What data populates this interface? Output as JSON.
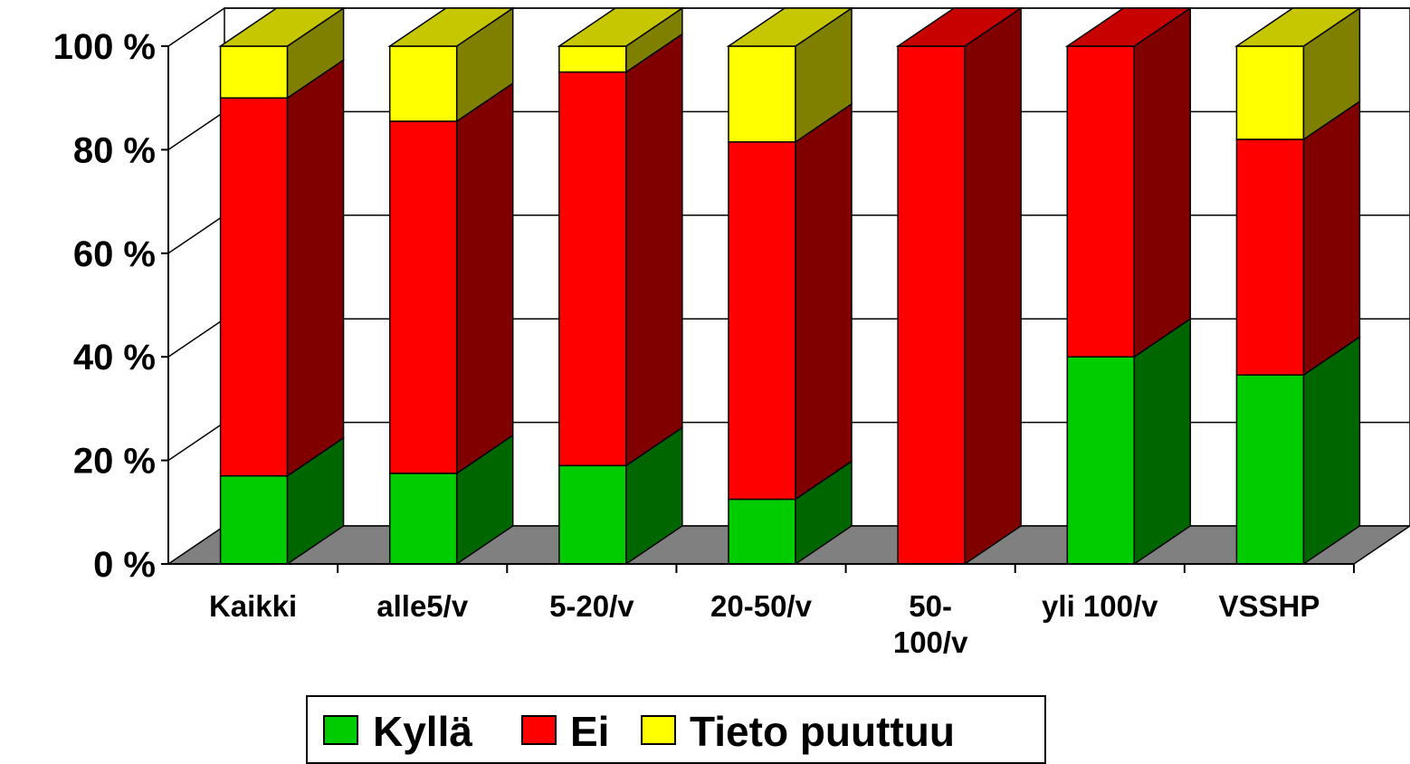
{
  "chart_data": {
    "type": "bar",
    "stacked": true,
    "percent_axis": true,
    "three_d": true,
    "categories": [
      "Kaikki",
      "alle5/v",
      "5-20/v",
      "20-50/v",
      "50-\n100/v",
      "yli 100/v",
      "VSSHP"
    ],
    "series": [
      {
        "name": "Kyllä",
        "color": "#00cc00",
        "values": [
          17,
          17.5,
          19,
          12.5,
          0,
          40,
          36.5
        ]
      },
      {
        "name": "Ei",
        "color": "#ff0000",
        "values": [
          73,
          68,
          76,
          69,
          100,
          60,
          45.5
        ]
      },
      {
        "name": "Tieto puuttuu",
        "color": "#ffff00",
        "values": [
          10,
          14.5,
          5,
          18.5,
          0,
          0,
          18
        ]
      }
    ],
    "yticks": [
      "0 %",
      "20 %",
      "40 %",
      "60 %",
      "80 %",
      "100 %"
    ],
    "ylim": [
      0,
      100
    ],
    "grid": true,
    "legend_position": "bottom",
    "title": "",
    "xlabel": "",
    "ylabel": ""
  }
}
